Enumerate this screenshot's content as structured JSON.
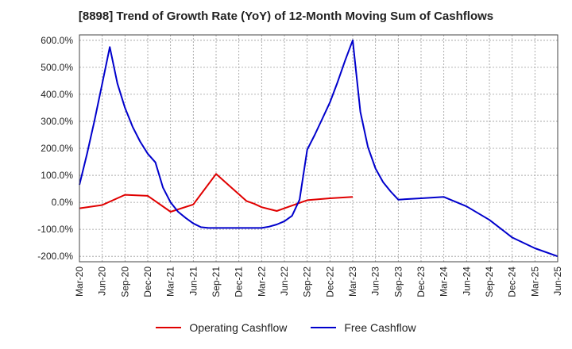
{
  "chart_data": {
    "type": "line",
    "title": "[8898]  Trend of Growth Rate (YoY) of 12-Month Moving Sum of Cashflows",
    "xlabel": "",
    "ylabel": "",
    "x_ticks": [
      "Mar-20",
      "Jun-20",
      "Sep-20",
      "Dec-20",
      "Mar-21",
      "Jun-21",
      "Sep-21",
      "Dec-21",
      "Mar-22",
      "Jun-22",
      "Sep-22",
      "Dec-22",
      "Mar-23",
      "Jun-23",
      "Sep-23",
      "Dec-23",
      "Mar-24",
      "Jun-24",
      "Sep-24",
      "Dec-24",
      "Mar-25",
      "Jun-25"
    ],
    "y_ticks": [
      "600.0%",
      "500.0%",
      "400.0%",
      "300.0%",
      "200.0%",
      "100.0%",
      "0.0%",
      "-100.0%",
      "-200.0%"
    ],
    "ylim": [
      -220,
      620
    ],
    "grid": true,
    "legend_position": "bottom",
    "series": [
      {
        "name": "Operating Cashflow",
        "color": "#e00000",
        "points": [
          [
            0,
            -22
          ],
          [
            3,
            -10
          ],
          [
            6,
            28
          ],
          [
            9,
            24
          ],
          [
            12,
            -35
          ],
          [
            15,
            -8
          ],
          [
            18,
            105
          ],
          [
            19,
            80
          ],
          [
            20,
            55
          ],
          [
            21,
            30
          ],
          [
            22,
            5
          ],
          [
            23,
            -5
          ],
          [
            24,
            -18
          ],
          [
            25,
            -25
          ],
          [
            26,
            -32
          ],
          [
            27,
            -22
          ],
          [
            28,
            -12
          ],
          [
            29,
            -2
          ],
          [
            30,
            8
          ],
          [
            33,
            15
          ],
          [
            36,
            20
          ]
        ]
      },
      {
        "name": "Free Cashflow",
        "color": "#0000cc",
        "points": [
          [
            0,
            65
          ],
          [
            1,
            180
          ],
          [
            2,
            305
          ],
          [
            3,
            440
          ],
          [
            4,
            575
          ],
          [
            5,
            440
          ],
          [
            6,
            350
          ],
          [
            7,
            280
          ],
          [
            8,
            225
          ],
          [
            9,
            180
          ],
          [
            10,
            148
          ],
          [
            11,
            55
          ],
          [
            12,
            0
          ],
          [
            13,
            -35
          ],
          [
            14,
            -58
          ],
          [
            15,
            -78
          ],
          [
            16,
            -92
          ],
          [
            17,
            -95
          ],
          [
            18,
            -95
          ],
          [
            19,
            -95
          ],
          [
            20,
            -95
          ],
          [
            21,
            -95
          ],
          [
            22,
            -95
          ],
          [
            23,
            -95
          ],
          [
            24,
            -95
          ],
          [
            25,
            -90
          ],
          [
            26,
            -82
          ],
          [
            27,
            -70
          ],
          [
            28,
            -50
          ],
          [
            29,
            10
          ],
          [
            30,
            195
          ],
          [
            31,
            250
          ],
          [
            32,
            310
          ],
          [
            33,
            370
          ],
          [
            34,
            445
          ],
          [
            35,
            525
          ],
          [
            36,
            600
          ],
          [
            37,
            335
          ],
          [
            38,
            205
          ],
          [
            39,
            125
          ],
          [
            40,
            75
          ],
          [
            41,
            40
          ],
          [
            42,
            10
          ],
          [
            45,
            15
          ],
          [
            48,
            20
          ],
          [
            51,
            -15
          ],
          [
            54,
            -65
          ],
          [
            57,
            -130
          ],
          [
            60,
            -170
          ],
          [
            63,
            -200
          ]
        ]
      }
    ]
  }
}
